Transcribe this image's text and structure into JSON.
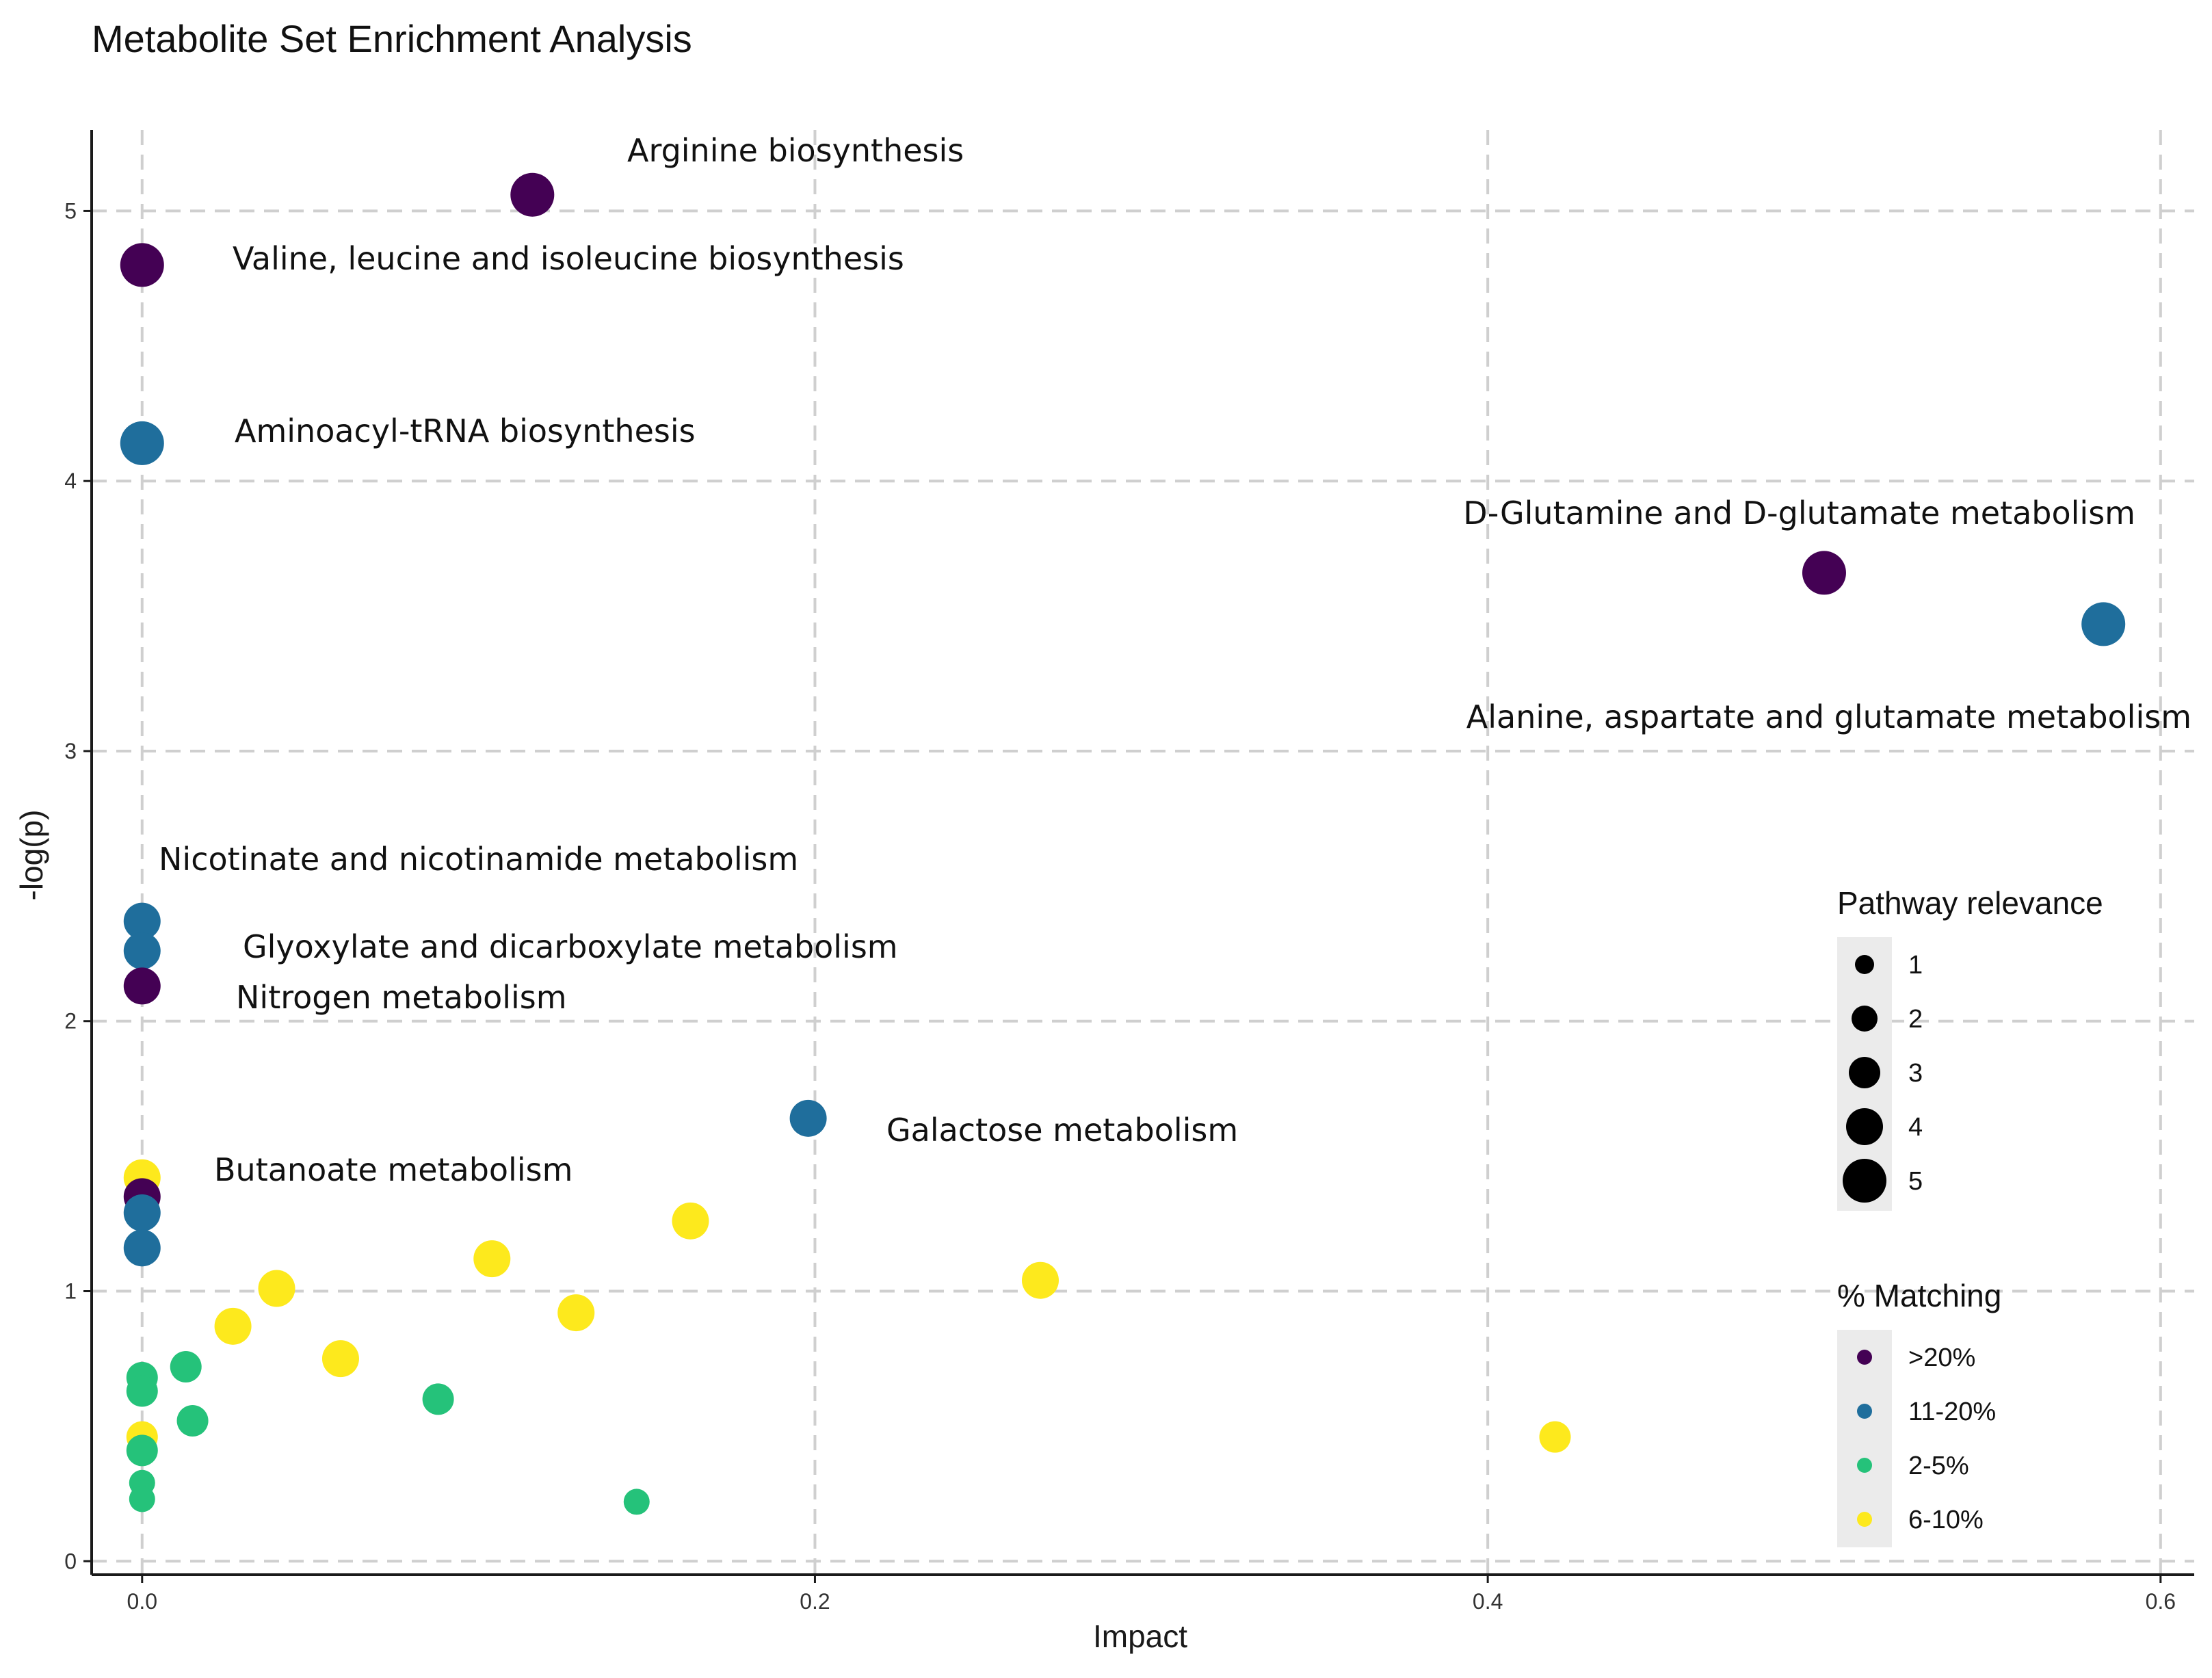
{
  "chart_data": {
    "type": "scatter",
    "title": "Metabolite Set Enrichment Analysis",
    "xlabel": "Impact",
    "ylabel": "-log(p)",
    "xlim": [
      -0.015,
      0.61
    ],
    "ylim": [
      -0.05,
      5.3
    ],
    "x_ticks": [
      0.0,
      0.2,
      0.4,
      0.6
    ],
    "x_tick_labels": [
      "0.0",
      "0.2",
      "0.4",
      "0.6"
    ],
    "y_ticks": [
      0,
      1,
      2,
      3,
      4,
      5
    ],
    "y_tick_labels": [
      "0",
      "1",
      "2",
      "3",
      "4",
      "5"
    ],
    "grid": true,
    "colors": {
      ">20%": "#440154",
      "11-20%": "#1f6e9c",
      "2-5%": "#25c27a",
      "6-10%": "#fde91d"
    },
    "points": [
      {
        "impact": 0.116,
        "logp": 5.06,
        "relevance": 5,
        "matching": ">20%",
        "label": "Arginine biosynthesis"
      },
      {
        "impact": 0.0,
        "logp": 4.8,
        "relevance": 5,
        "matching": ">20%",
        "label": "Valine, leucine and isoleucine biosynthesis"
      },
      {
        "impact": 0.0,
        "logp": 4.14,
        "relevance": 5,
        "matching": "11-20%",
        "label": "Aminoacyl-tRNA biosynthesis"
      },
      {
        "impact": 0.5,
        "logp": 3.66,
        "relevance": 5,
        "matching": ">20%",
        "label": "D-Glutamine and D-glutamate metabolism"
      },
      {
        "impact": 0.583,
        "logp": 3.47,
        "relevance": 5,
        "matching": "11-20%",
        "label": "Alanine, aspartate and glutamate metabolism"
      },
      {
        "impact": 0.0,
        "logp": 2.37,
        "relevance": 4,
        "matching": "11-20%",
        "label": "Nicotinate and nicotinamide metabolism"
      },
      {
        "impact": 0.0,
        "logp": 2.26,
        "relevance": 4,
        "matching": "11-20%",
        "label": "Glyoxylate and dicarboxylate metabolism"
      },
      {
        "impact": 0.0,
        "logp": 2.13,
        "relevance": 4,
        "matching": ">20%",
        "label": "Nitrogen metabolism"
      },
      {
        "impact": 0.198,
        "logp": 1.64,
        "relevance": 4,
        "matching": "11-20%",
        "label": "Galactose metabolism"
      },
      {
        "impact": 0.0,
        "logp": 1.42,
        "relevance": 4,
        "matching": "6-10%",
        "label": "Butanoate metabolism"
      },
      {
        "impact": 0.0,
        "logp": 1.35,
        "relevance": 4,
        "matching": ">20%",
        "label": ""
      },
      {
        "impact": 0.0,
        "logp": 1.29,
        "relevance": 4,
        "matching": "11-20%",
        "label": ""
      },
      {
        "impact": 0.0,
        "logp": 1.16,
        "relevance": 4,
        "matching": "11-20%",
        "label": ""
      },
      {
        "impact": 0.163,
        "logp": 1.26,
        "relevance": 4,
        "matching": "6-10%",
        "label": ""
      },
      {
        "impact": 0.104,
        "logp": 1.12,
        "relevance": 4,
        "matching": "6-10%",
        "label": ""
      },
      {
        "impact": 0.04,
        "logp": 1.01,
        "relevance": 4,
        "matching": "6-10%",
        "label": ""
      },
      {
        "impact": 0.267,
        "logp": 1.04,
        "relevance": 4,
        "matching": "6-10%",
        "label": ""
      },
      {
        "impact": 0.129,
        "logp": 0.92,
        "relevance": 4,
        "matching": "6-10%",
        "label": ""
      },
      {
        "impact": 0.027,
        "logp": 0.87,
        "relevance": 4,
        "matching": "6-10%",
        "label": ""
      },
      {
        "impact": 0.059,
        "logp": 0.75,
        "relevance": 4,
        "matching": "6-10%",
        "label": ""
      },
      {
        "impact": 0.42,
        "logp": 0.46,
        "relevance": 3,
        "matching": "6-10%",
        "label": ""
      },
      {
        "impact": 0.0,
        "logp": 0.46,
        "relevance": 3,
        "matching": "6-10%",
        "label": ""
      },
      {
        "impact": 0.013,
        "logp": 0.72,
        "relevance": 3,
        "matching": "2-5%",
        "label": ""
      },
      {
        "impact": 0.0,
        "logp": 0.68,
        "relevance": 3,
        "matching": "2-5%",
        "label": ""
      },
      {
        "impact": 0.0,
        "logp": 0.63,
        "relevance": 3,
        "matching": "2-5%",
        "label": ""
      },
      {
        "impact": 0.088,
        "logp": 0.6,
        "relevance": 3,
        "matching": "2-5%",
        "label": ""
      },
      {
        "impact": 0.015,
        "logp": 0.52,
        "relevance": 3,
        "matching": "2-5%",
        "label": ""
      },
      {
        "impact": 0.0,
        "logp": 0.41,
        "relevance": 3,
        "matching": "2-5%",
        "label": ""
      },
      {
        "impact": 0.0,
        "logp": 0.29,
        "relevance": 2,
        "matching": "2-5%",
        "label": ""
      },
      {
        "impact": 0.0,
        "logp": 0.23,
        "relevance": 2,
        "matching": "2-5%",
        "label": ""
      },
      {
        "impact": 0.147,
        "logp": 0.22,
        "relevance": 2,
        "matching": "2-5%",
        "label": ""
      }
    ],
    "legend": {
      "size_title": "Pathway relevance",
      "size_items": [
        "1",
        "2",
        "3",
        "4",
        "5"
      ],
      "color_title": "% Matching",
      "color_items": [
        ">20%",
        "11-20%",
        "2-5%",
        "6-10%"
      ]
    }
  }
}
